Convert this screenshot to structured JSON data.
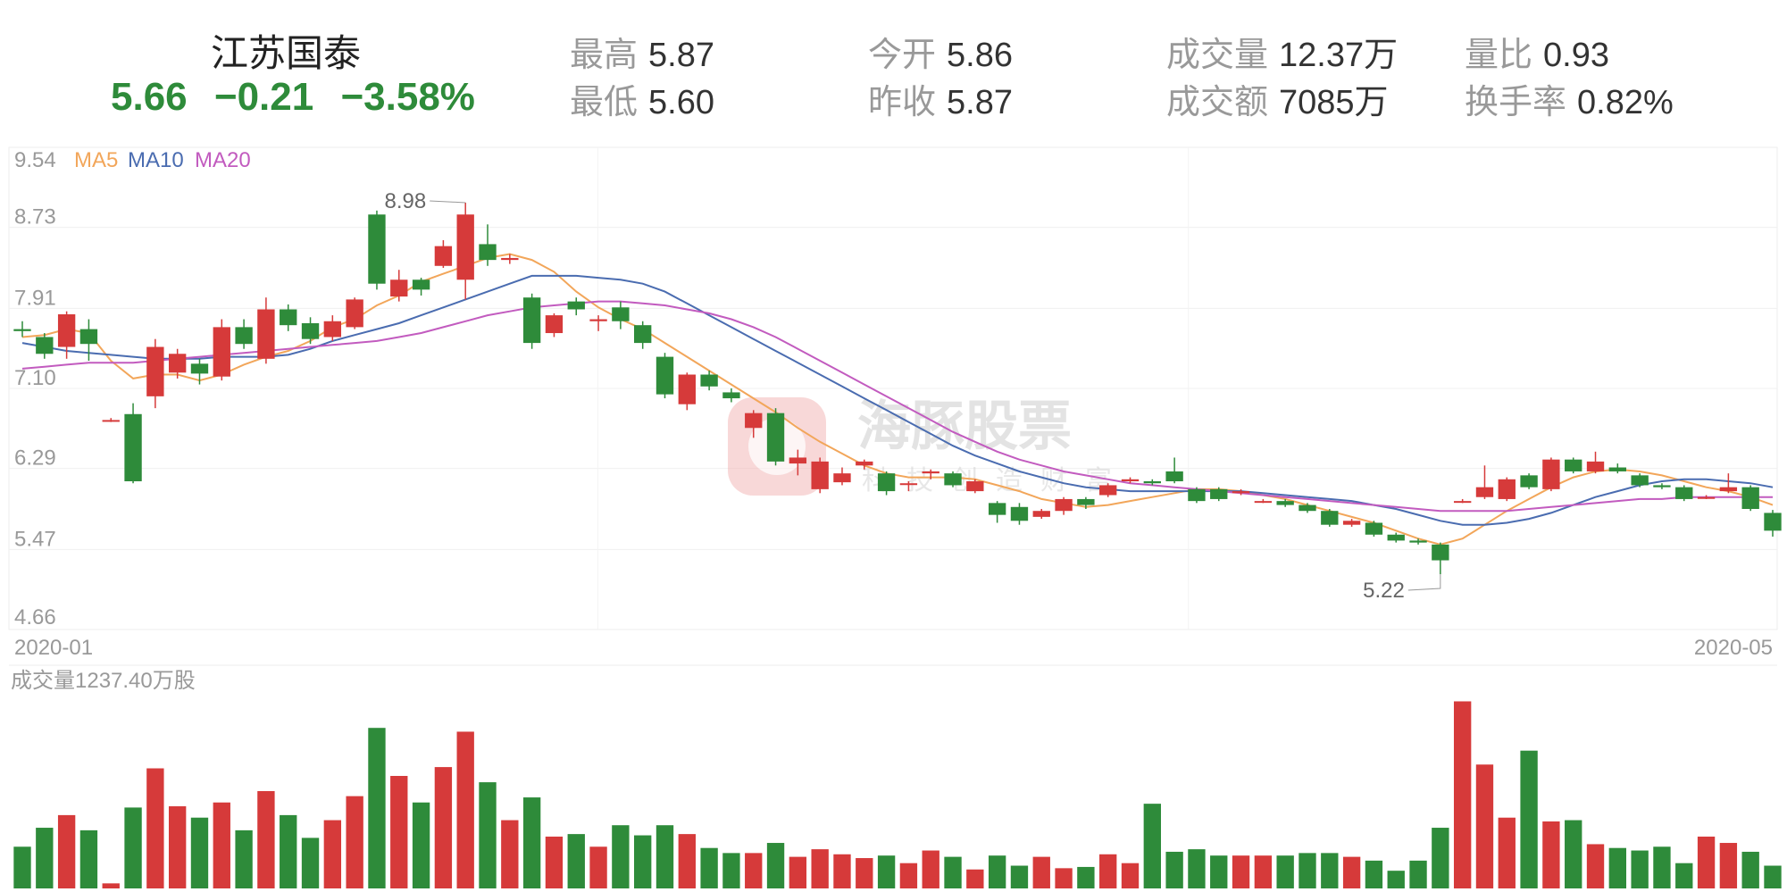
{
  "quote": {
    "name": "江苏国泰",
    "price": "5.66",
    "change": "−0.21",
    "change_pct": "−3.58%",
    "stats": [
      {
        "label": "最高",
        "value": "5.87"
      },
      {
        "label": "最低",
        "value": "5.60"
      },
      {
        "label": "今开",
        "value": "5.86"
      },
      {
        "label": "昨收",
        "value": "5.87"
      },
      {
        "label": "成交量",
        "value": "12.37万"
      },
      {
        "label": "成交额",
        "value": "7085万"
      },
      {
        "label": "量比",
        "value": "0.93"
      },
      {
        "label": "换手率",
        "value": "0.82%"
      }
    ]
  },
  "watermark": {
    "title": "海豚股票",
    "subtitle": "科技创造财富"
  },
  "colors": {
    "up": "#d63a3a",
    "down": "#2e8b3a",
    "ma5": "#f2a65a",
    "ma10": "#4a6cb0",
    "ma20": "#c25bbf"
  },
  "chart_data": {
    "type": "candlestick",
    "y_ticks": [
      "9.54",
      "8.73",
      "7.91",
      "7.10",
      "6.29",
      "5.47",
      "4.66"
    ],
    "ylim": [
      4.66,
      9.54
    ],
    "x_labels": [
      "2020-01",
      "2020-05"
    ],
    "legend": [
      "MA5",
      "MA10",
      "MA20"
    ],
    "high_label": "8.98",
    "low_label": "5.22",
    "volume_label": "成交量1237.40万股",
    "candles": [
      [
        7.7,
        7.68,
        7.78,
        7.62
      ],
      [
        7.62,
        7.45,
        7.66,
        7.4
      ],
      [
        7.52,
        7.85,
        7.88,
        7.4
      ],
      [
        7.7,
        7.55,
        7.8,
        7.38
      ],
      [
        6.78,
        6.78,
        6.8,
        6.76
      ],
      [
        6.84,
        6.16,
        6.95,
        6.14
      ],
      [
        7.02,
        7.52,
        7.6,
        6.9
      ],
      [
        7.26,
        7.45,
        7.5,
        7.2
      ],
      [
        7.35,
        7.25,
        7.4,
        7.14
      ],
      [
        7.22,
        7.72,
        7.8,
        7.18
      ],
      [
        7.72,
        7.55,
        7.8,
        7.5
      ],
      [
        7.4,
        7.9,
        8.02,
        7.35
      ],
      [
        7.9,
        7.74,
        7.95,
        7.68
      ],
      [
        7.76,
        7.6,
        7.82,
        7.55
      ],
      [
        7.62,
        7.78,
        7.84,
        7.58
      ],
      [
        7.72,
        8.0,
        8.02,
        7.7
      ],
      [
        8.86,
        8.16,
        8.9,
        8.1
      ],
      [
        8.03,
        8.2,
        8.3,
        7.98
      ],
      [
        8.2,
        8.1,
        8.22,
        8.04
      ],
      [
        8.34,
        8.54,
        8.6,
        8.32
      ],
      [
        8.2,
        8.86,
        8.98,
        8.0
      ],
      [
        8.56,
        8.4,
        8.76,
        8.34
      ],
      [
        8.4,
        8.42,
        8.46,
        8.36
      ],
      [
        8.02,
        7.56,
        8.06,
        7.5
      ],
      [
        7.66,
        7.84,
        7.86,
        7.62
      ],
      [
        7.98,
        7.9,
        8.02,
        7.84
      ],
      [
        7.78,
        7.8,
        7.84,
        7.68
      ],
      [
        7.92,
        7.78,
        7.98,
        7.7
      ],
      [
        7.74,
        7.56,
        7.78,
        7.5
      ],
      [
        7.42,
        7.04,
        7.46,
        7.0
      ],
      [
        6.94,
        7.24,
        7.26,
        6.88
      ],
      [
        7.24,
        7.12,
        7.28,
        7.08
      ],
      [
        7.06,
        7.0,
        7.1,
        6.96
      ],
      [
        6.7,
        6.85,
        6.88,
        6.6
      ],
      [
        6.85,
        6.36,
        6.9,
        6.32
      ],
      [
        6.34,
        6.4,
        6.48,
        6.22
      ],
      [
        6.08,
        6.36,
        6.4,
        6.04
      ],
      [
        6.15,
        6.24,
        6.3,
        6.12
      ],
      [
        6.32,
        6.36,
        6.38,
        6.28
      ],
      [
        6.24,
        6.06,
        6.26,
        6.02
      ],
      [
        6.14,
        6.14,
        6.16,
        6.06
      ],
      [
        6.24,
        6.26,
        6.28,
        6.18
      ],
      [
        6.24,
        6.12,
        6.26,
        6.1
      ],
      [
        6.06,
        6.16,
        6.18,
        6.04
      ],
      [
        5.94,
        5.82,
        5.96,
        5.74
      ],
      [
        5.9,
        5.76,
        5.94,
        5.72
      ],
      [
        5.8,
        5.86,
        5.88,
        5.78
      ],
      [
        5.86,
        5.98,
        6.0,
        5.82
      ],
      [
        5.98,
        5.92,
        6.0,
        5.88
      ],
      [
        6.02,
        6.12,
        6.14,
        6.0
      ],
      [
        6.16,
        6.18,
        6.2,
        6.14
      ],
      [
        6.16,
        6.14,
        6.18,
        6.12
      ],
      [
        6.26,
        6.16,
        6.4,
        6.14
      ],
      [
        6.08,
        5.96,
        6.1,
        5.94
      ],
      [
        6.08,
        5.98,
        6.1,
        5.96
      ],
      [
        6.04,
        6.06,
        6.08,
        6.02
      ],
      [
        5.96,
        5.96,
        5.98,
        5.94
      ],
      [
        5.96,
        5.92,
        5.98,
        5.9
      ],
      [
        5.92,
        5.86,
        5.94,
        5.84
      ],
      [
        5.86,
        5.72,
        5.88,
        5.7
      ],
      [
        5.72,
        5.76,
        5.78,
        5.7
      ],
      [
        5.74,
        5.62,
        5.76,
        5.6
      ],
      [
        5.62,
        5.56,
        5.64,
        5.54
      ],
      [
        5.56,
        5.54,
        5.58,
        5.52
      ],
      [
        5.52,
        5.36,
        5.54,
        5.22
      ],
      [
        5.96,
        5.96,
        5.98,
        5.94
      ],
      [
        6.0,
        6.1,
        6.32,
        5.98
      ],
      [
        5.98,
        6.18,
        6.2,
        5.96
      ],
      [
        6.22,
        6.1,
        6.24,
        6.08
      ],
      [
        6.08,
        6.38,
        6.4,
        6.06
      ],
      [
        6.38,
        6.26,
        6.4,
        6.24
      ],
      [
        6.26,
        6.36,
        6.46,
        6.24
      ],
      [
        6.3,
        6.26,
        6.34,
        6.24
      ],
      [
        6.22,
        6.12,
        6.24,
        6.1
      ],
      [
        6.12,
        6.1,
        6.14,
        6.08
      ],
      [
        6.1,
        5.98,
        6.12,
        5.96
      ],
      [
        6.0,
        6.0,
        6.02,
        5.98
      ],
      [
        6.06,
        6.1,
        6.24,
        6.04
      ],
      [
        6.1,
        5.88,
        6.12,
        5.86
      ],
      [
        5.84,
        5.66,
        5.87,
        5.6
      ]
    ],
    "ma5": [
      7.62,
      7.64,
      7.7,
      7.66,
      7.38,
      7.2,
      7.24,
      7.24,
      7.18,
      7.24,
      7.34,
      7.42,
      7.48,
      7.58,
      7.72,
      7.8,
      7.94,
      8.04,
      8.18,
      8.26,
      8.34,
      8.42,
      8.46,
      8.4,
      8.28,
      8.08,
      7.92,
      7.8,
      7.7,
      7.56,
      7.42,
      7.28,
      7.14,
      7.0,
      6.86,
      6.7,
      6.56,
      6.44,
      6.32,
      6.24,
      6.2,
      6.2,
      6.2,
      6.18,
      6.12,
      6.06,
      5.98,
      5.94,
      5.9,
      5.92,
      5.96,
      6.0,
      6.04,
      6.08,
      6.08,
      6.06,
      6.02,
      5.98,
      5.92,
      5.86,
      5.8,
      5.74,
      5.66,
      5.58,
      5.52,
      5.58,
      5.72,
      5.86,
      5.98,
      6.1,
      6.2,
      6.26,
      6.28,
      6.26,
      6.22,
      6.16,
      6.1,
      6.06,
      6.0,
      5.92
    ],
    "ma10": [
      7.56,
      7.52,
      7.48,
      7.46,
      7.44,
      7.42,
      7.4,
      7.4,
      7.4,
      7.42,
      7.42,
      7.42,
      7.44,
      7.5,
      7.58,
      7.64,
      7.7,
      7.76,
      7.84,
      7.92,
      8.0,
      8.08,
      8.16,
      8.24,
      8.24,
      8.24,
      8.22,
      8.2,
      8.16,
      8.08,
      7.96,
      7.84,
      7.72,
      7.6,
      7.48,
      7.36,
      7.24,
      7.12,
      7.0,
      6.88,
      6.76,
      6.64,
      6.52,
      6.42,
      6.34,
      6.26,
      6.2,
      6.14,
      6.1,
      6.08,
      6.06,
      6.06,
      6.06,
      6.06,
      6.06,
      6.06,
      6.04,
      6.02,
      6.0,
      5.98,
      5.96,
      5.92,
      5.88,
      5.82,
      5.76,
      5.72,
      5.72,
      5.74,
      5.78,
      5.84,
      5.92,
      6.0,
      6.06,
      6.12,
      6.16,
      6.18,
      6.18,
      6.16,
      6.14,
      6.1
    ],
    "ma20": [
      7.3,
      7.32,
      7.34,
      7.36,
      7.36,
      7.36,
      7.38,
      7.4,
      7.42,
      7.44,
      7.46,
      7.48,
      7.5,
      7.52,
      7.54,
      7.56,
      7.58,
      7.62,
      7.66,
      7.72,
      7.78,
      7.84,
      7.88,
      7.92,
      7.94,
      7.96,
      7.98,
      7.98,
      7.96,
      7.94,
      7.9,
      7.86,
      7.8,
      7.72,
      7.62,
      7.5,
      7.38,
      7.26,
      7.14,
      7.02,
      6.9,
      6.78,
      6.66,
      6.56,
      6.46,
      6.38,
      6.32,
      6.26,
      6.22,
      6.18,
      6.14,
      6.12,
      6.1,
      6.08,
      6.06,
      6.04,
      6.02,
      6.0,
      5.98,
      5.96,
      5.94,
      5.92,
      5.9,
      5.88,
      5.86,
      5.86,
      5.86,
      5.86,
      5.88,
      5.9,
      5.92,
      5.94,
      5.96,
      5.98,
      5.98,
      6.0,
      6.0,
      6.0,
      6.0,
      6.0
    ],
    "volumes": [
      3.3,
      4.8,
      5.8,
      4.6,
      0.4,
      6.4,
      9.5,
      6.5,
      5.6,
      6.8,
      4.6,
      7.7,
      5.8,
      4.0,
      5.4,
      7.3,
      12.7,
      8.9,
      6.8,
      9.6,
      12.4,
      8.4,
      5.4,
      7.2,
      4.1,
      4.3,
      3.3,
      5.0,
      4.2,
      5.0,
      4.3,
      3.2,
      2.8,
      2.8,
      3.6,
      2.5,
      3.1,
      2.7,
      2.4,
      2.6,
      2.0,
      3.0,
      2.5,
      1.5,
      2.6,
      1.8,
      2.5,
      1.6,
      1.7,
      2.7,
      2.0,
      6.7,
      2.9,
      3.1,
      2.6,
      2.6,
      2.6,
      2.6,
      2.8,
      2.8,
      2.5,
      2.2,
      1.4,
      2.2,
      4.8,
      14.8,
      9.8,
      5.6,
      10.9,
      5.3,
      5.4,
      3.5,
      3.2,
      3.0,
      3.3,
      2.0,
      4.1,
      3.6,
      2.9,
      1.8
    ]
  }
}
